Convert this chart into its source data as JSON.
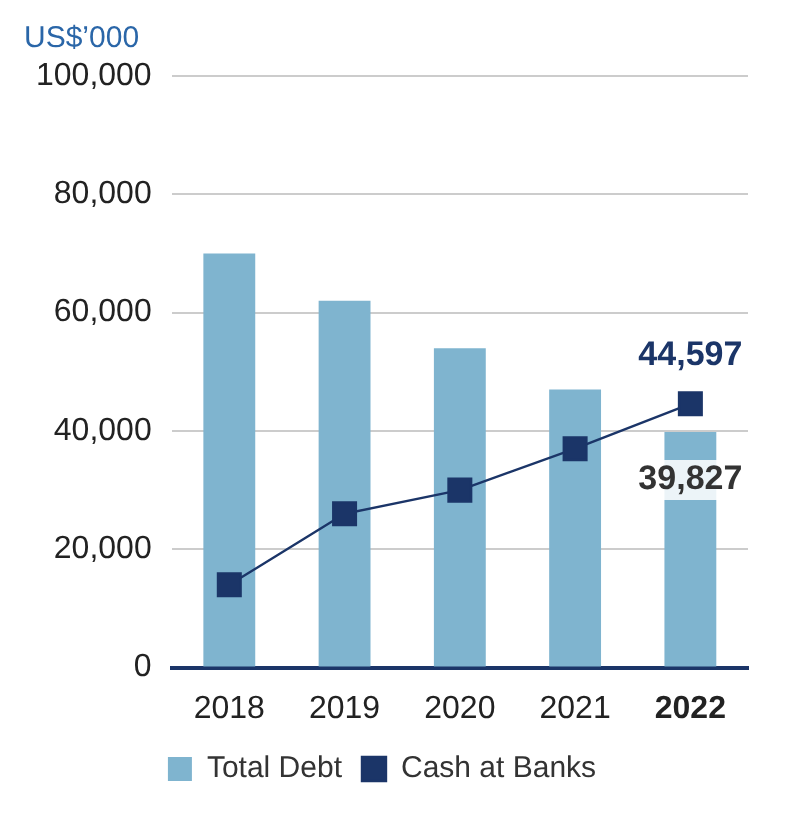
{
  "chart_data": {
    "type": "bar",
    "ylabel": "US$’000",
    "categories": [
      "2018",
      "2019",
      "2020",
      "2021",
      "2022"
    ],
    "series": [
      {
        "name": "Total Debt",
        "color": "#7fb4cf",
        "values": [
          70000,
          62000,
          54000,
          47000,
          39827
        ],
        "value_labels": [
          null,
          null,
          null,
          null,
          "39,827"
        ]
      },
      {
        "name": "Cash at Banks",
        "type": "line",
        "color": "#1b3568",
        "values": [
          14000,
          26000,
          30000,
          37000,
          44597
        ],
        "value_labels": [
          null,
          null,
          null,
          null,
          "44,597"
        ]
      }
    ],
    "ylim": [
      0,
      100000
    ],
    "yticks": [
      0,
      {
        "value": 20000,
        "label": "20,000"
      },
      {
        "value": 40000,
        "label": "40,000"
      },
      {
        "value": 60000,
        "label": "60,000"
      },
      {
        "value": 80000,
        "label": "80,000"
      },
      {
        "value": 100000,
        "label": "100,000"
      }
    ],
    "grid": "y",
    "legend": "bottom",
    "marker": "square"
  }
}
